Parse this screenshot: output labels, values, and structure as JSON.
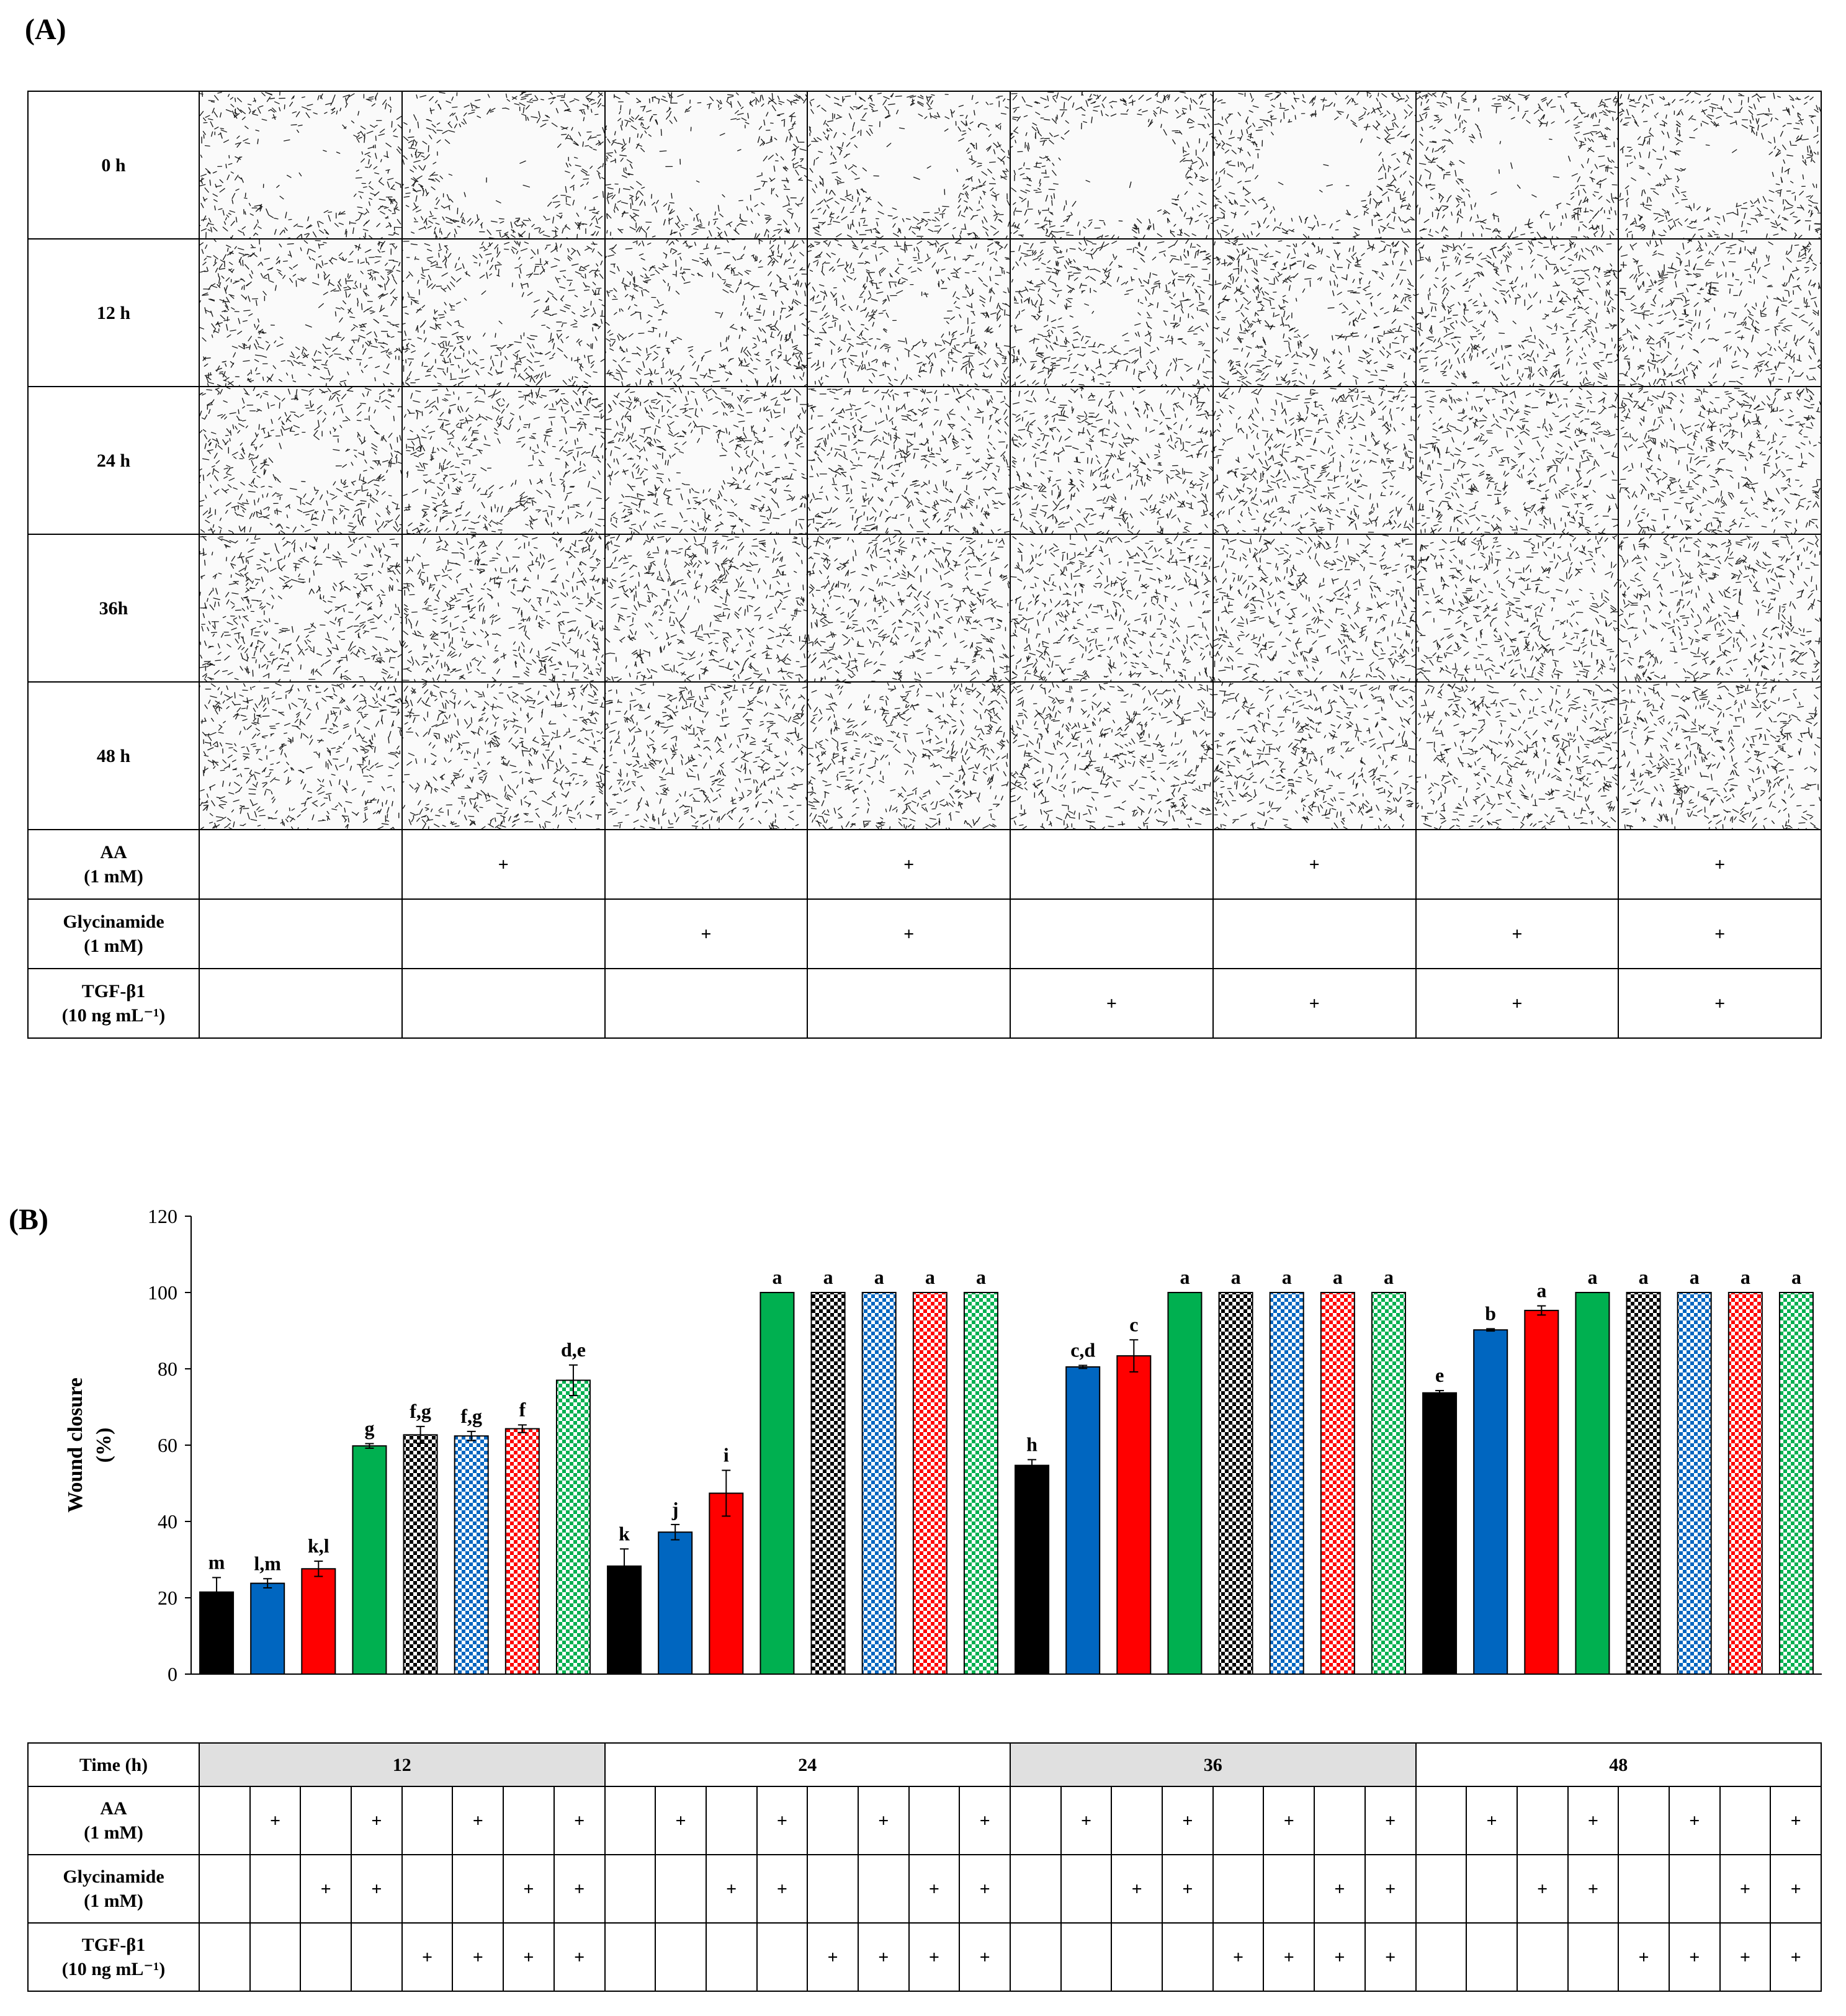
{
  "panel_a": {
    "label": "(A)",
    "time_rows": [
      "0 h",
      "12 h",
      "24 h",
      "36h",
      "48 h"
    ],
    "open_area": [
      [
        0.95,
        1.0,
        0.95,
        0.9,
        1.0,
        0.95,
        0.9,
        0.75
      ],
      [
        0.6,
        0.55,
        0.55,
        0.42,
        0.48,
        0.38,
        0.32,
        0.28
      ],
      [
        0.5,
        0.4,
        0.45,
        0,
        0,
        0,
        0,
        0
      ],
      [
        0.35,
        0.22,
        0.2,
        0,
        0,
        0,
        0,
        0
      ],
      [
        0.22,
        0.08,
        0.04,
        0,
        0,
        0,
        0,
        0
      ]
    ],
    "conditions": [
      {
        "label_line1": "AA",
        "label_line2": "(1 mM)",
        "marks": [
          "",
          "+",
          "",
          "+",
          "",
          "+",
          "",
          "+"
        ]
      },
      {
        "label_line1": "Glycinamide",
        "label_line2": "(1 mM)",
        "marks": [
          "",
          "",
          "+",
          "+",
          "",
          "",
          "+",
          "+"
        ]
      },
      {
        "label_line1": "TGF-β1",
        "label_line2": "(10 ng mL⁻¹)",
        "marks": [
          "",
          "",
          "",
          "",
          "+",
          "+",
          "+",
          "+"
        ]
      }
    ]
  },
  "panel_b": {
    "label": "(B)",
    "time_header_label": "Time (h)",
    "time_groups": [
      "12",
      "24",
      "36",
      "48"
    ],
    "conditions": [
      {
        "label_line1": "AA",
        "label_line2": "(1 mM)",
        "marks": [
          "",
          "+",
          "",
          "+",
          "",
          "+",
          "",
          "+"
        ]
      },
      {
        "label_line1": "Glycinamide",
        "label_line2": "(1 mM)",
        "marks": [
          "",
          "",
          "+",
          "+",
          "",
          "",
          "+",
          "+"
        ]
      },
      {
        "label_line1": "TGF-β1",
        "label_line2": "(10 ng mL⁻¹)",
        "marks": [
          "",
          "",
          "",
          "",
          "+",
          "+",
          "+",
          "+"
        ]
      }
    ]
  },
  "chart_data": {
    "type": "bar",
    "ylabel_line1": "Wound closure",
    "ylabel_line2": "(%)",
    "ylim": [
      0,
      120
    ],
    "yticks": [
      0,
      20,
      40,
      60,
      80,
      100,
      120
    ],
    "grid": false,
    "categories": [
      "12",
      "24",
      "36",
      "48"
    ],
    "treatments": [
      {
        "color": "#000000",
        "pattern": "solid"
      },
      {
        "color": "#0066c0",
        "pattern": "solid"
      },
      {
        "color": "#ff0000",
        "pattern": "solid"
      },
      {
        "color": "#00b050",
        "pattern": "solid"
      },
      {
        "color": "#000000",
        "pattern": "checker"
      },
      {
        "color": "#0066c0",
        "pattern": "checker"
      },
      {
        "color": "#ff0000",
        "pattern": "checker"
      },
      {
        "color": "#00b050",
        "pattern": "checker"
      }
    ],
    "groups": [
      {
        "time": "12",
        "values": [
          21.5,
          23.8,
          27.6,
          59.8,
          62.7,
          62.4,
          64.3,
          77.0
        ],
        "errors": [
          3.8,
          1.2,
          2.0,
          0.6,
          2.2,
          1.2,
          1.0,
          4.0
        ],
        "letters": [
          "m",
          "l,m",
          "k,l",
          "g",
          "f,g",
          "f,g",
          "f",
          "d,e"
        ]
      },
      {
        "time": "24",
        "values": [
          28.3,
          37.2,
          47.4,
          100,
          100,
          100,
          100,
          100
        ],
        "errors": [
          4.5,
          2.0,
          6.0,
          0,
          0,
          0,
          0,
          0
        ],
        "letters": [
          "k",
          "j",
          "i",
          "a",
          "a",
          "a",
          "a",
          "a"
        ]
      },
      {
        "time": "36",
        "values": [
          54.7,
          80.5,
          83.4,
          100,
          100,
          100,
          100,
          100
        ],
        "errors": [
          1.5,
          0.4,
          4.2,
          0,
          0,
          0,
          0,
          0
        ],
        "letters": [
          "h",
          "c,d",
          "c",
          "a",
          "a",
          "a",
          "a",
          "a"
        ]
      },
      {
        "time": "48",
        "values": [
          73.7,
          90.2,
          95.3,
          100,
          100,
          100,
          100,
          100
        ],
        "errors": [
          0.6,
          0.3,
          1.2,
          0,
          0,
          0,
          0,
          0
        ],
        "letters": [
          "e",
          "b",
          "a",
          "a",
          "a",
          "a",
          "a",
          "a"
        ]
      }
    ]
  }
}
